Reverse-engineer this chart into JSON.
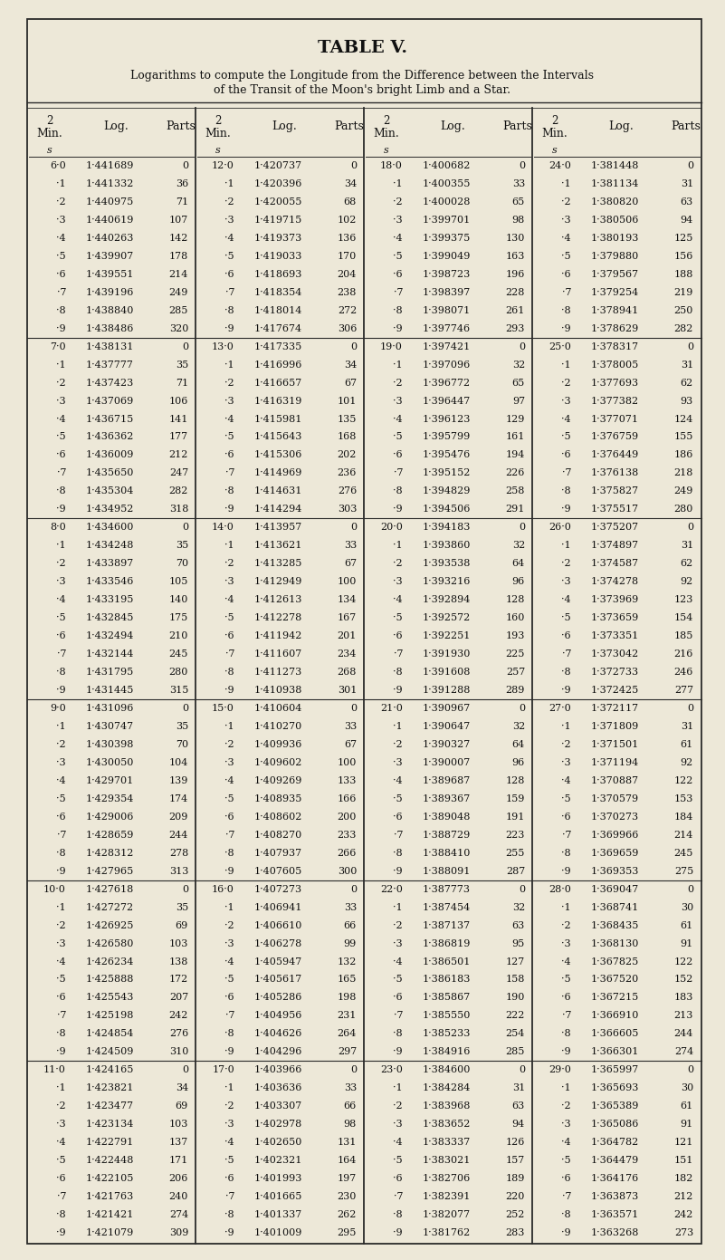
{
  "title": "TABLE V.",
  "subtitle1": "Logarithms to compute the Longitude from the Difference between the Intervals",
  "subtitle2": "of the Transit of the Moon's bright Limb and a Star.",
  "bg_color": "#ede8d8",
  "text_color": "#111111",
  "table_data": [
    [
      "6·0",
      "1·441689",
      "0",
      "12·0",
      "1·420737",
      "0",
      "18·0",
      "1·400682",
      "0",
      "24·0",
      "1·381448",
      "0"
    ],
    [
      "·1",
      "1·441332",
      "36",
      "·1",
      "1·420396",
      "34",
      "·1",
      "1·400355",
      "33",
      "·1",
      "1·381134",
      "31"
    ],
    [
      "·2",
      "1·440975",
      "71",
      "·2",
      "1·420055",
      "68",
      "·2",
      "1·400028",
      "65",
      "·2",
      "1·380820",
      "63"
    ],
    [
      "·3",
      "1·440619",
      "107",
      "·3",
      "1·419715",
      "102",
      "·3",
      "1·399701",
      "98",
      "·3",
      "1·380506",
      "94"
    ],
    [
      "·4",
      "1·440263",
      "142",
      "·4",
      "1·419373",
      "136",
      "·4",
      "1·399375",
      "130",
      "·4",
      "1·380193",
      "125"
    ],
    [
      "·5",
      "1·439907",
      "178",
      "·5",
      "1·419033",
      "170",
      "·5",
      "1·399049",
      "163",
      "·5",
      "1·379880",
      "156"
    ],
    [
      "·6",
      "1·439551",
      "214",
      "·6",
      "1·418693",
      "204",
      "·6",
      "1·398723",
      "196",
      "·6",
      "1·379567",
      "188"
    ],
    [
      "·7",
      "1·439196",
      "249",
      "·7",
      "1·418354",
      "238",
      "·7",
      "1·398397",
      "228",
      "·7",
      "1·379254",
      "219"
    ],
    [
      "·8",
      "1·438840",
      "285",
      "·8",
      "1·418014",
      "272",
      "·8",
      "1·398071",
      "261",
      "·8",
      "1·378941",
      "250"
    ],
    [
      "·9",
      "1·438486",
      "320",
      "·9",
      "1·417674",
      "306",
      "·9",
      "1·397746",
      "293",
      "·9",
      "1·378629",
      "282"
    ],
    [
      "7·0",
      "1·438131",
      "0",
      "13·0",
      "1·417335",
      "0",
      "19·0",
      "1·397421",
      "0",
      "25·0",
      "1·378317",
      "0"
    ],
    [
      "·1",
      "1·437777",
      "35",
      "·1",
      "1·416996",
      "34",
      "·1",
      "1·397096",
      "32",
      "·1",
      "1·378005",
      "31"
    ],
    [
      "·2",
      "1·437423",
      "71",
      "·2",
      "1·416657",
      "67",
      "·2",
      "1·396772",
      "65",
      "·2",
      "1·377693",
      "62"
    ],
    [
      "·3",
      "1·437069",
      "106",
      "·3",
      "1·416319",
      "101",
      "·3",
      "1·396447",
      "97",
      "·3",
      "1·377382",
      "93"
    ],
    [
      "·4",
      "1·436715",
      "141",
      "·4",
      "1·415981",
      "135",
      "·4",
      "1·396123",
      "129",
      "·4",
      "1·377071",
      "124"
    ],
    [
      "·5",
      "1·436362",
      "177",
      "·5",
      "1·415643",
      "168",
      "·5",
      "1·395799",
      "161",
      "·5",
      "1·376759",
      "155"
    ],
    [
      "·6",
      "1·436009",
      "212",
      "·6",
      "1·415306",
      "202",
      "·6",
      "1·395476",
      "194",
      "·6",
      "1·376449",
      "186"
    ],
    [
      "·7",
      "1·435650",
      "247",
      "·7",
      "1·414969",
      "236",
      "·7",
      "1·395152",
      "226",
      "·7",
      "1·376138",
      "218"
    ],
    [
      "·8",
      "1·435304",
      "282",
      "·8",
      "1·414631",
      "276",
      "·8",
      "1·394829",
      "258",
      "·8",
      "1·375827",
      "249"
    ],
    [
      "·9",
      "1·434952",
      "318",
      "·9",
      "1·414294",
      "303",
      "·9",
      "1·394506",
      "291",
      "·9",
      "1·375517",
      "280"
    ],
    [
      "8·0",
      "1·434600",
      "0",
      "14·0",
      "1·413957",
      "0",
      "20·0",
      "1·394183",
      "0",
      "26·0",
      "1·375207",
      "0"
    ],
    [
      "·1",
      "1·434248",
      "35",
      "·1",
      "1·413621",
      "33",
      "·1",
      "1·393860",
      "32",
      "·1",
      "1·374897",
      "31"
    ],
    [
      "·2",
      "1·433897",
      "70",
      "·2",
      "1·413285",
      "67",
      "·2",
      "1·393538",
      "64",
      "·2",
      "1·374587",
      "62"
    ],
    [
      "·3",
      "1·433546",
      "105",
      "·3",
      "1·412949",
      "100",
      "·3",
      "1·393216",
      "96",
      "·3",
      "1·374278",
      "92"
    ],
    [
      "·4",
      "1·433195",
      "140",
      "·4",
      "1·412613",
      "134",
      "·4",
      "1·392894",
      "128",
      "·4",
      "1·373969",
      "123"
    ],
    [
      "·5",
      "1·432845",
      "175",
      "·5",
      "1·412278",
      "167",
      "·5",
      "1·392572",
      "160",
      "·5",
      "1·373659",
      "154"
    ],
    [
      "·6",
      "1·432494",
      "210",
      "·6",
      "1·411942",
      "201",
      "·6",
      "1·392251",
      "193",
      "·6",
      "1·373351",
      "185"
    ],
    [
      "·7",
      "1·432144",
      "245",
      "·7",
      "1·411607",
      "234",
      "·7",
      "1·391930",
      "225",
      "·7",
      "1·373042",
      "216"
    ],
    [
      "·8",
      "1·431795",
      "280",
      "·8",
      "1·411273",
      "268",
      "·8",
      "1·391608",
      "257",
      "·8",
      "1·372733",
      "246"
    ],
    [
      "·9",
      "1·431445",
      "315",
      "·9",
      "1·410938",
      "301",
      "·9",
      "1·391288",
      "289",
      "·9",
      "1·372425",
      "277"
    ],
    [
      "9·0",
      "1·431096",
      "0",
      "15·0",
      "1·410604",
      "0",
      "21·0",
      "1·390967",
      "0",
      "27·0",
      "1·372117",
      "0"
    ],
    [
      "·1",
      "1·430747",
      "35",
      "·1",
      "1·410270",
      "33",
      "·1",
      "1·390647",
      "32",
      "·1",
      "1·371809",
      "31"
    ],
    [
      "·2",
      "1·430398",
      "70",
      "·2",
      "1·409936",
      "67",
      "·2",
      "1·390327",
      "64",
      "·2",
      "1·371501",
      "61"
    ],
    [
      "·3",
      "1·430050",
      "104",
      "·3",
      "1·409602",
      "100",
      "·3",
      "1·390007",
      "96",
      "·3",
      "1·371194",
      "92"
    ],
    [
      "·4",
      "1·429701",
      "139",
      "·4",
      "1·409269",
      "133",
      "·4",
      "1·389687",
      "128",
      "·4",
      "1·370887",
      "122"
    ],
    [
      "·5",
      "1·429354",
      "174",
      "·5",
      "1·408935",
      "166",
      "·5",
      "1·389367",
      "159",
      "·5",
      "1·370579",
      "153"
    ],
    [
      "·6",
      "1·429006",
      "209",
      "·6",
      "1·408602",
      "200",
      "·6",
      "1·389048",
      "191",
      "·6",
      "1·370273",
      "184"
    ],
    [
      "·7",
      "1·428659",
      "244",
      "·7",
      "1·408270",
      "233",
      "·7",
      "1·388729",
      "223",
      "·7",
      "1·369966",
      "214"
    ],
    [
      "·8",
      "1·428312",
      "278",
      "·8",
      "1·407937",
      "266",
      "·8",
      "1·388410",
      "255",
      "·8",
      "1·369659",
      "245"
    ],
    [
      "·9",
      "1·427965",
      "313",
      "·9",
      "1·407605",
      "300",
      "·9",
      "1·388091",
      "287",
      "·9",
      "1·369353",
      "275"
    ],
    [
      "10·0",
      "1·427618",
      "0",
      "16·0",
      "1·407273",
      "0",
      "22·0",
      "1·387773",
      "0",
      "28·0",
      "1·369047",
      "0"
    ],
    [
      "·1",
      "1·427272",
      "35",
      "·1",
      "1·406941",
      "33",
      "·1",
      "1·387454",
      "32",
      "·1",
      "1·368741",
      "30"
    ],
    [
      "·2",
      "1·426925",
      "69",
      "·2",
      "1·406610",
      "66",
      "·2",
      "1·387137",
      "63",
      "·2",
      "1·368435",
      "61"
    ],
    [
      "·3",
      "1·426580",
      "103",
      "·3",
      "1·406278",
      "99",
      "·3",
      "1·386819",
      "95",
      "·3",
      "1·368130",
      "91"
    ],
    [
      "·4",
      "1·426234",
      "138",
      "·4",
      "1·405947",
      "132",
      "·4",
      "1·386501",
      "127",
      "·4",
      "1·367825",
      "122"
    ],
    [
      "·5",
      "1·425888",
      "172",
      "·5",
      "1·405617",
      "165",
      "·5",
      "1·386183",
      "158",
      "·5",
      "1·367520",
      "152"
    ],
    [
      "·6",
      "1·425543",
      "207",
      "·6",
      "1·405286",
      "198",
      "·6",
      "1·385867",
      "190",
      "·6",
      "1·367215",
      "183"
    ],
    [
      "·7",
      "1·425198",
      "242",
      "·7",
      "1·404956",
      "231",
      "·7",
      "1·385550",
      "222",
      "·7",
      "1·366910",
      "213"
    ],
    [
      "·8",
      "1·424854",
      "276",
      "·8",
      "1·404626",
      "264",
      "·8",
      "1·385233",
      "254",
      "·8",
      "1·366605",
      "244"
    ],
    [
      "·9",
      "1·424509",
      "310",
      "·9",
      "1·404296",
      "297",
      "·9",
      "1·384916",
      "285",
      "·9",
      "1·366301",
      "274"
    ],
    [
      "11·0",
      "1·424165",
      "0",
      "17·0",
      "1·403966",
      "0",
      "23·0",
      "1·384600",
      "0",
      "29·0",
      "1·365997",
      "0"
    ],
    [
      "·1",
      "1·423821",
      "34",
      "·1",
      "1·403636",
      "33",
      "·1",
      "1·384284",
      "31",
      "·1",
      "1·365693",
      "30"
    ],
    [
      "·2",
      "1·423477",
      "69",
      "·2",
      "1·403307",
      "66",
      "·2",
      "1·383968",
      "63",
      "·2",
      "1·365389",
      "61"
    ],
    [
      "·3",
      "1·423134",
      "103",
      "·3",
      "1·402978",
      "98",
      "·3",
      "1·383652",
      "94",
      "·3",
      "1·365086",
      "91"
    ],
    [
      "·4",
      "1·422791",
      "137",
      "·4",
      "1·402650",
      "131",
      "·4",
      "1·383337",
      "126",
      "·4",
      "1·364782",
      "121"
    ],
    [
      "·5",
      "1·422448",
      "171",
      "·5",
      "1·402321",
      "164",
      "·5",
      "1·383021",
      "157",
      "·5",
      "1·364479",
      "151"
    ],
    [
      "·6",
      "1·422105",
      "206",
      "·6",
      "1·401993",
      "197",
      "·6",
      "1·382706",
      "189",
      "·6",
      "1·364176",
      "182"
    ],
    [
      "·7",
      "1·421763",
      "240",
      "·7",
      "1·401665",
      "230",
      "·7",
      "1·382391",
      "220",
      "·7",
      "1·363873",
      "212"
    ],
    [
      "·8",
      "1·421421",
      "274",
      "·8",
      "1·401337",
      "262",
      "·8",
      "1·382077",
      "252",
      "·8",
      "1·363571",
      "242"
    ],
    [
      "·9",
      "1·421079",
      "309",
      "·9",
      "1·401009",
      "295",
      "·9",
      "1·381762",
      "283",
      "·9",
      "1·363268",
      "273"
    ]
  ]
}
